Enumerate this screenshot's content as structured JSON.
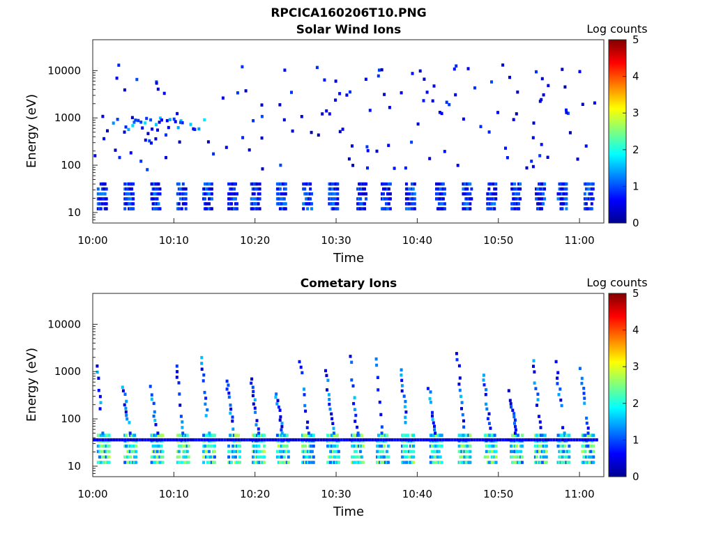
{
  "figure_title": "RPCICA160206T10.PNG",
  "chart_data": [
    {
      "type": "heatmap",
      "title": "Solar Wind Ions",
      "xlabel": "Time",
      "ylabel": "Energy (eV)",
      "yscale": "log",
      "ylim": [
        6,
        45000
      ],
      "xlim_minutes": [
        0,
        63
      ],
      "x_ticks": [
        {
          "minute": 0,
          "label": "10:00"
        },
        {
          "minute": 10,
          "label": "10:10"
        },
        {
          "minute": 20,
          "label": "10:20"
        },
        {
          "minute": 30,
          "label": "10:30"
        },
        {
          "minute": 40,
          "label": "10:40"
        },
        {
          "minute": 50,
          "label": "10:50"
        },
        {
          "minute": 60,
          "label": "11:00"
        }
      ],
      "y_ticks": [
        {
          "value": 10,
          "label": "10"
        },
        {
          "value": 100,
          "label": "100"
        },
        {
          "value": 1000,
          "label": "1000"
        },
        {
          "value": 10000,
          "label": "10000"
        }
      ],
      "colorbar": {
        "label": "Log counts",
        "range": [
          0,
          5
        ],
        "ticks": [
          "0",
          "1",
          "2",
          "3",
          "4",
          "5"
        ]
      },
      "low_band_bursts_minute": [
        0.5,
        3.8,
        7.1,
        10.3,
        13.5,
        16.6,
        19.4,
        22.6,
        25.8,
        29.0,
        32.5,
        35.5,
        38.5,
        42.2,
        45.5,
        48.5,
        51.5,
        54.5,
        57.2,
        60.5
      ],
      "low_band_energy_eV": [
        12,
        40
      ],
      "low_band_log_counts": [
        0.3,
        1.3
      ],
      "sparse_energy_range_eV": [
        50,
        15000
      ],
      "sparse_log_counts": [
        0.2,
        1.8
      ]
    },
    {
      "type": "heatmap",
      "title": "Cometary Ions",
      "xlabel": "Time",
      "ylabel": "Energy (eV)",
      "yscale": "log",
      "ylim": [
        6,
        45000
      ],
      "xlim_minutes": [
        0,
        63
      ],
      "x_ticks": [
        {
          "minute": 0,
          "label": "10:00"
        },
        {
          "minute": 10,
          "label": "10:10"
        },
        {
          "minute": 20,
          "label": "10:20"
        },
        {
          "minute": 30,
          "label": "10:30"
        },
        {
          "minute": 40,
          "label": "10:40"
        },
        {
          "minute": 50,
          "label": "10:50"
        },
        {
          "minute": 60,
          "label": "11:00"
        }
      ],
      "y_ticks": [
        {
          "value": 10,
          "label": "10"
        },
        {
          "value": 100,
          "label": "100"
        },
        {
          "value": 1000,
          "label": "1000"
        },
        {
          "value": 10000,
          "label": "10000"
        }
      ],
      "colorbar": {
        "label": "Log counts",
        "range": [
          0,
          5
        ],
        "ticks": [
          "0",
          "1",
          "2",
          "3",
          "4",
          "5"
        ]
      },
      "bursts_minute": [
        0.5,
        3.8,
        7.1,
        10.3,
        13.5,
        16.6,
        19.6,
        22.6,
        25.7,
        28.8,
        31.8,
        34.9,
        38.0,
        41.5,
        45.0,
        48.2,
        51.4,
        54.4,
        57.2,
        60.2
      ],
      "burst_core_energy_eV": [
        12,
        45
      ],
      "burst_core_log_counts": [
        1.0,
        2.8
      ],
      "dispersed_arm_top_energy_eV": [
        300,
        2500
      ],
      "arm_log_counts": [
        0.3,
        1.6
      ]
    }
  ]
}
